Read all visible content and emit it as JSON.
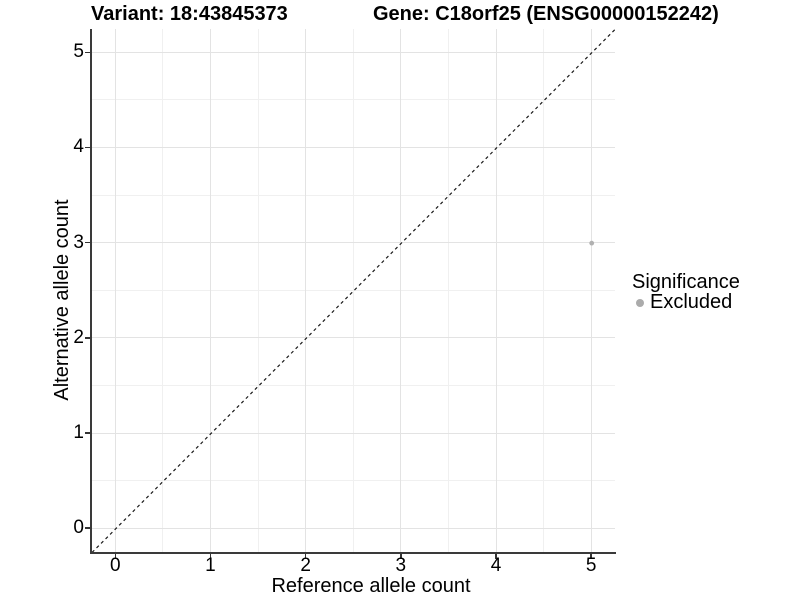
{
  "chart_data": {
    "type": "scatter",
    "title_left": "Variant: 18:43845373",
    "title_right": "Gene: C18orf25 (ENSG00000152242)",
    "xlabel": "Reference allele count",
    "ylabel": "Alternative allele count",
    "xlim": [
      -0.25,
      5.25
    ],
    "ylim": [
      -0.25,
      5.25
    ],
    "x_ticks": [
      0,
      1,
      2,
      3,
      4,
      5
    ],
    "y_ticks": [
      0,
      1,
      2,
      3,
      4,
      5
    ],
    "x_minor_ticks": [
      0.5,
      1.5,
      2.5,
      3.5,
      4.5
    ],
    "y_minor_ticks": [
      0.5,
      1.5,
      2.5,
      3.5,
      4.5
    ],
    "grid": true,
    "points": [
      {
        "x": 5,
        "y": 3,
        "significance": "Excluded"
      }
    ],
    "reference_line": {
      "slope": 1,
      "intercept": 0,
      "style": "dashed",
      "dash": [
        3.2,
        3.2
      ]
    },
    "legend": {
      "title": "Significance",
      "position": "right",
      "entries": [
        {
          "label": "Excluded",
          "color": "#ababab"
        }
      ]
    },
    "colors": {
      "point": "#b1b1b1",
      "reference_line": "#1a1a1a",
      "axis": "#3a3a3a",
      "grid_major": "#e3e3e3",
      "grid_minor": "#f0f0f0",
      "text": "#000000"
    }
  }
}
